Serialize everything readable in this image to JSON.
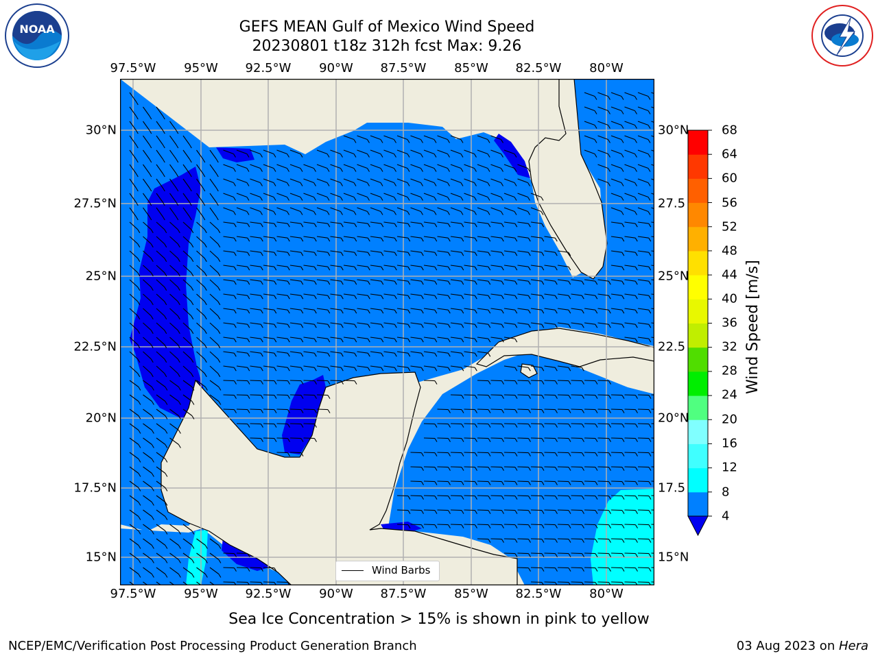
{
  "title": {
    "line1": "GEFS MEAN Gulf of Mexico Wind Speed",
    "line2": "20230801 t18z 312h fcst   Max: 9.26"
  },
  "map": {
    "lon_ticks": [
      "97.5°W",
      "95°W",
      "92.5°W",
      "90°W",
      "87.5°W",
      "85°W",
      "82.5°W",
      "80°W"
    ],
    "lat_ticks_left": [
      "30°N",
      "27.5°N",
      "25°N",
      "22.5°N",
      "20°N",
      "17.5°N",
      "15°N"
    ],
    "lat_ticks_right": [
      "30°N",
      "27.5",
      "25°N",
      "22.5",
      "20°N",
      "17.5",
      "15°N"
    ],
    "legend_label": "Wind Barbs",
    "colors": {
      "land": "#efedde",
      "water_4_8": "#0080ff",
      "water_lt4": "#0000f0",
      "water_8_12": "#00ffff",
      "grid": "#b0b0b0"
    }
  },
  "colorbar": {
    "label": "Wind Speed [m/s]",
    "ticks": [
      "68",
      "64",
      "60",
      "56",
      "52",
      "48",
      "44",
      "40",
      "36",
      "32",
      "28",
      "24",
      "20",
      "16",
      "12",
      "8",
      "4"
    ],
    "colors": [
      "#0080ff",
      "#00ffff",
      "#40ffff",
      "#80ffff",
      "#50ff80",
      "#00ee00",
      "#50dd00",
      "#c0ee00",
      "#e8f800",
      "#ffff00",
      "#ffe000",
      "#ffb000",
      "#ff8800",
      "#ff6000",
      "#ff3800",
      "#ff0000"
    ],
    "under_color": "#0000f0"
  },
  "subcaption": "Sea Ice Concentration > 15% is shown in pink to yellow",
  "footer": {
    "left": "NCEP/EMC/Verification Post Processing Product Generation Branch",
    "right_date": "03 Aug 2023 on ",
    "right_host": "Hera"
  },
  "logos": {
    "left_icon": "noaa-logo",
    "left_text": "NOAA",
    "right_icon": "nws-logo"
  }
}
